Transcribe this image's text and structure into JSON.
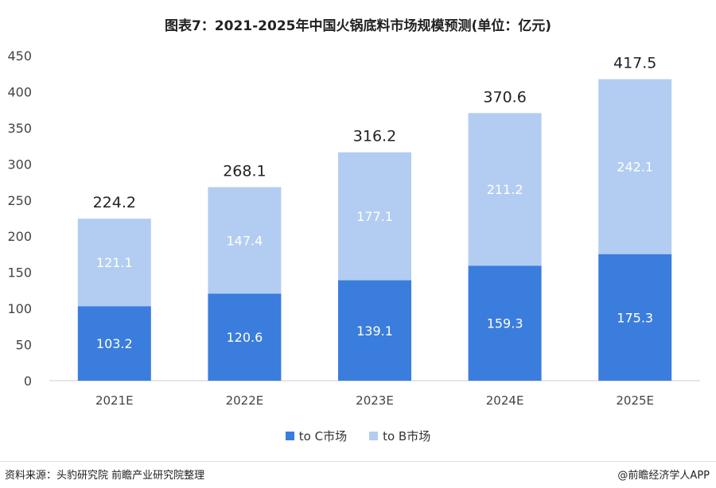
{
  "header": {
    "title": "图表7：2021-2025年中国火锅底料市场规模预测(单位：亿元)"
  },
  "colors": {
    "to_c": "#3b7ddd",
    "to_b": "#b3cdf2",
    "axis": "#cccccc"
  },
  "chart_data": {
    "type": "bar",
    "stacked": true,
    "title": "图表7：2021-2025年中国火锅底料市场规模预测(单位：亿元)",
    "categories": [
      "2021E",
      "2022E",
      "2023E",
      "2024E",
      "2025E"
    ],
    "series": [
      {
        "name": "to C市场",
        "values": [
          103.2,
          120.6,
          139.1,
          159.3,
          175.3
        ]
      },
      {
        "name": "to B市场",
        "values": [
          121.1,
          147.4,
          177.1,
          211.2,
          242.1
        ]
      }
    ],
    "totals": [
      "224.2",
      "268.1",
      "316.2",
      "370.6",
      "417.5"
    ],
    "yticks": [
      "0",
      "50",
      "100",
      "150",
      "200",
      "250",
      "300",
      "350",
      "400",
      "450"
    ],
    "ylim": [
      0,
      450
    ],
    "legend_position": "bottom"
  },
  "footer": {
    "source": "资料来源：头豹研究院 前瞻产业研究院整理",
    "brand": "@前瞻经济学人APP"
  }
}
